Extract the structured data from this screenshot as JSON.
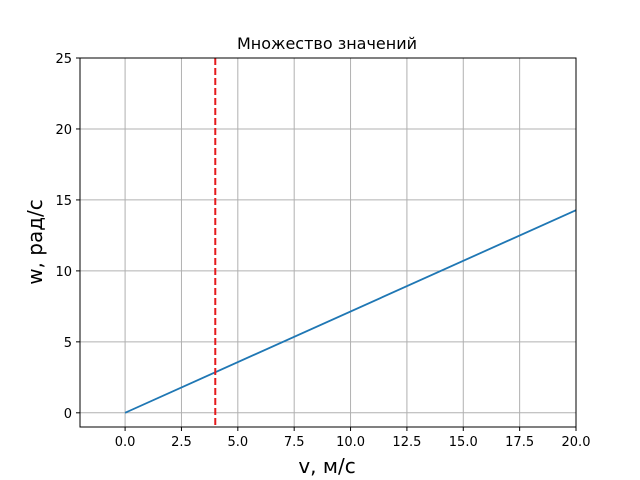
{
  "chart_data": {
    "type": "line",
    "title": "Множество значений",
    "xlabel": "v, м/с",
    "ylabel": "w, рад/с",
    "xlim": [
      -2,
      20
    ],
    "ylim": [
      -1,
      25
    ],
    "grid": true,
    "x_ticks": [
      0.0,
      2.5,
      5.0,
      7.5,
      10.0,
      12.5,
      15.0,
      17.5,
      20.0
    ],
    "x_tick_labels": [
      "0.0",
      "2.5",
      "5.0",
      "7.5",
      "10.0",
      "12.5",
      "15.0",
      "17.5",
      "20.0"
    ],
    "y_ticks": [
      0,
      5,
      10,
      15,
      20,
      25
    ],
    "y_tick_labels": [
      "0",
      "5",
      "10",
      "15",
      "20",
      "25"
    ],
    "series": [
      {
        "color": "#1f77b4",
        "style": "solid",
        "x": [
          0,
          20
        ],
        "y": [
          0,
          14.28
        ]
      }
    ],
    "vlines": [
      {
        "x": 4,
        "color": "#e41a1c",
        "style": "dashed"
      }
    ]
  }
}
